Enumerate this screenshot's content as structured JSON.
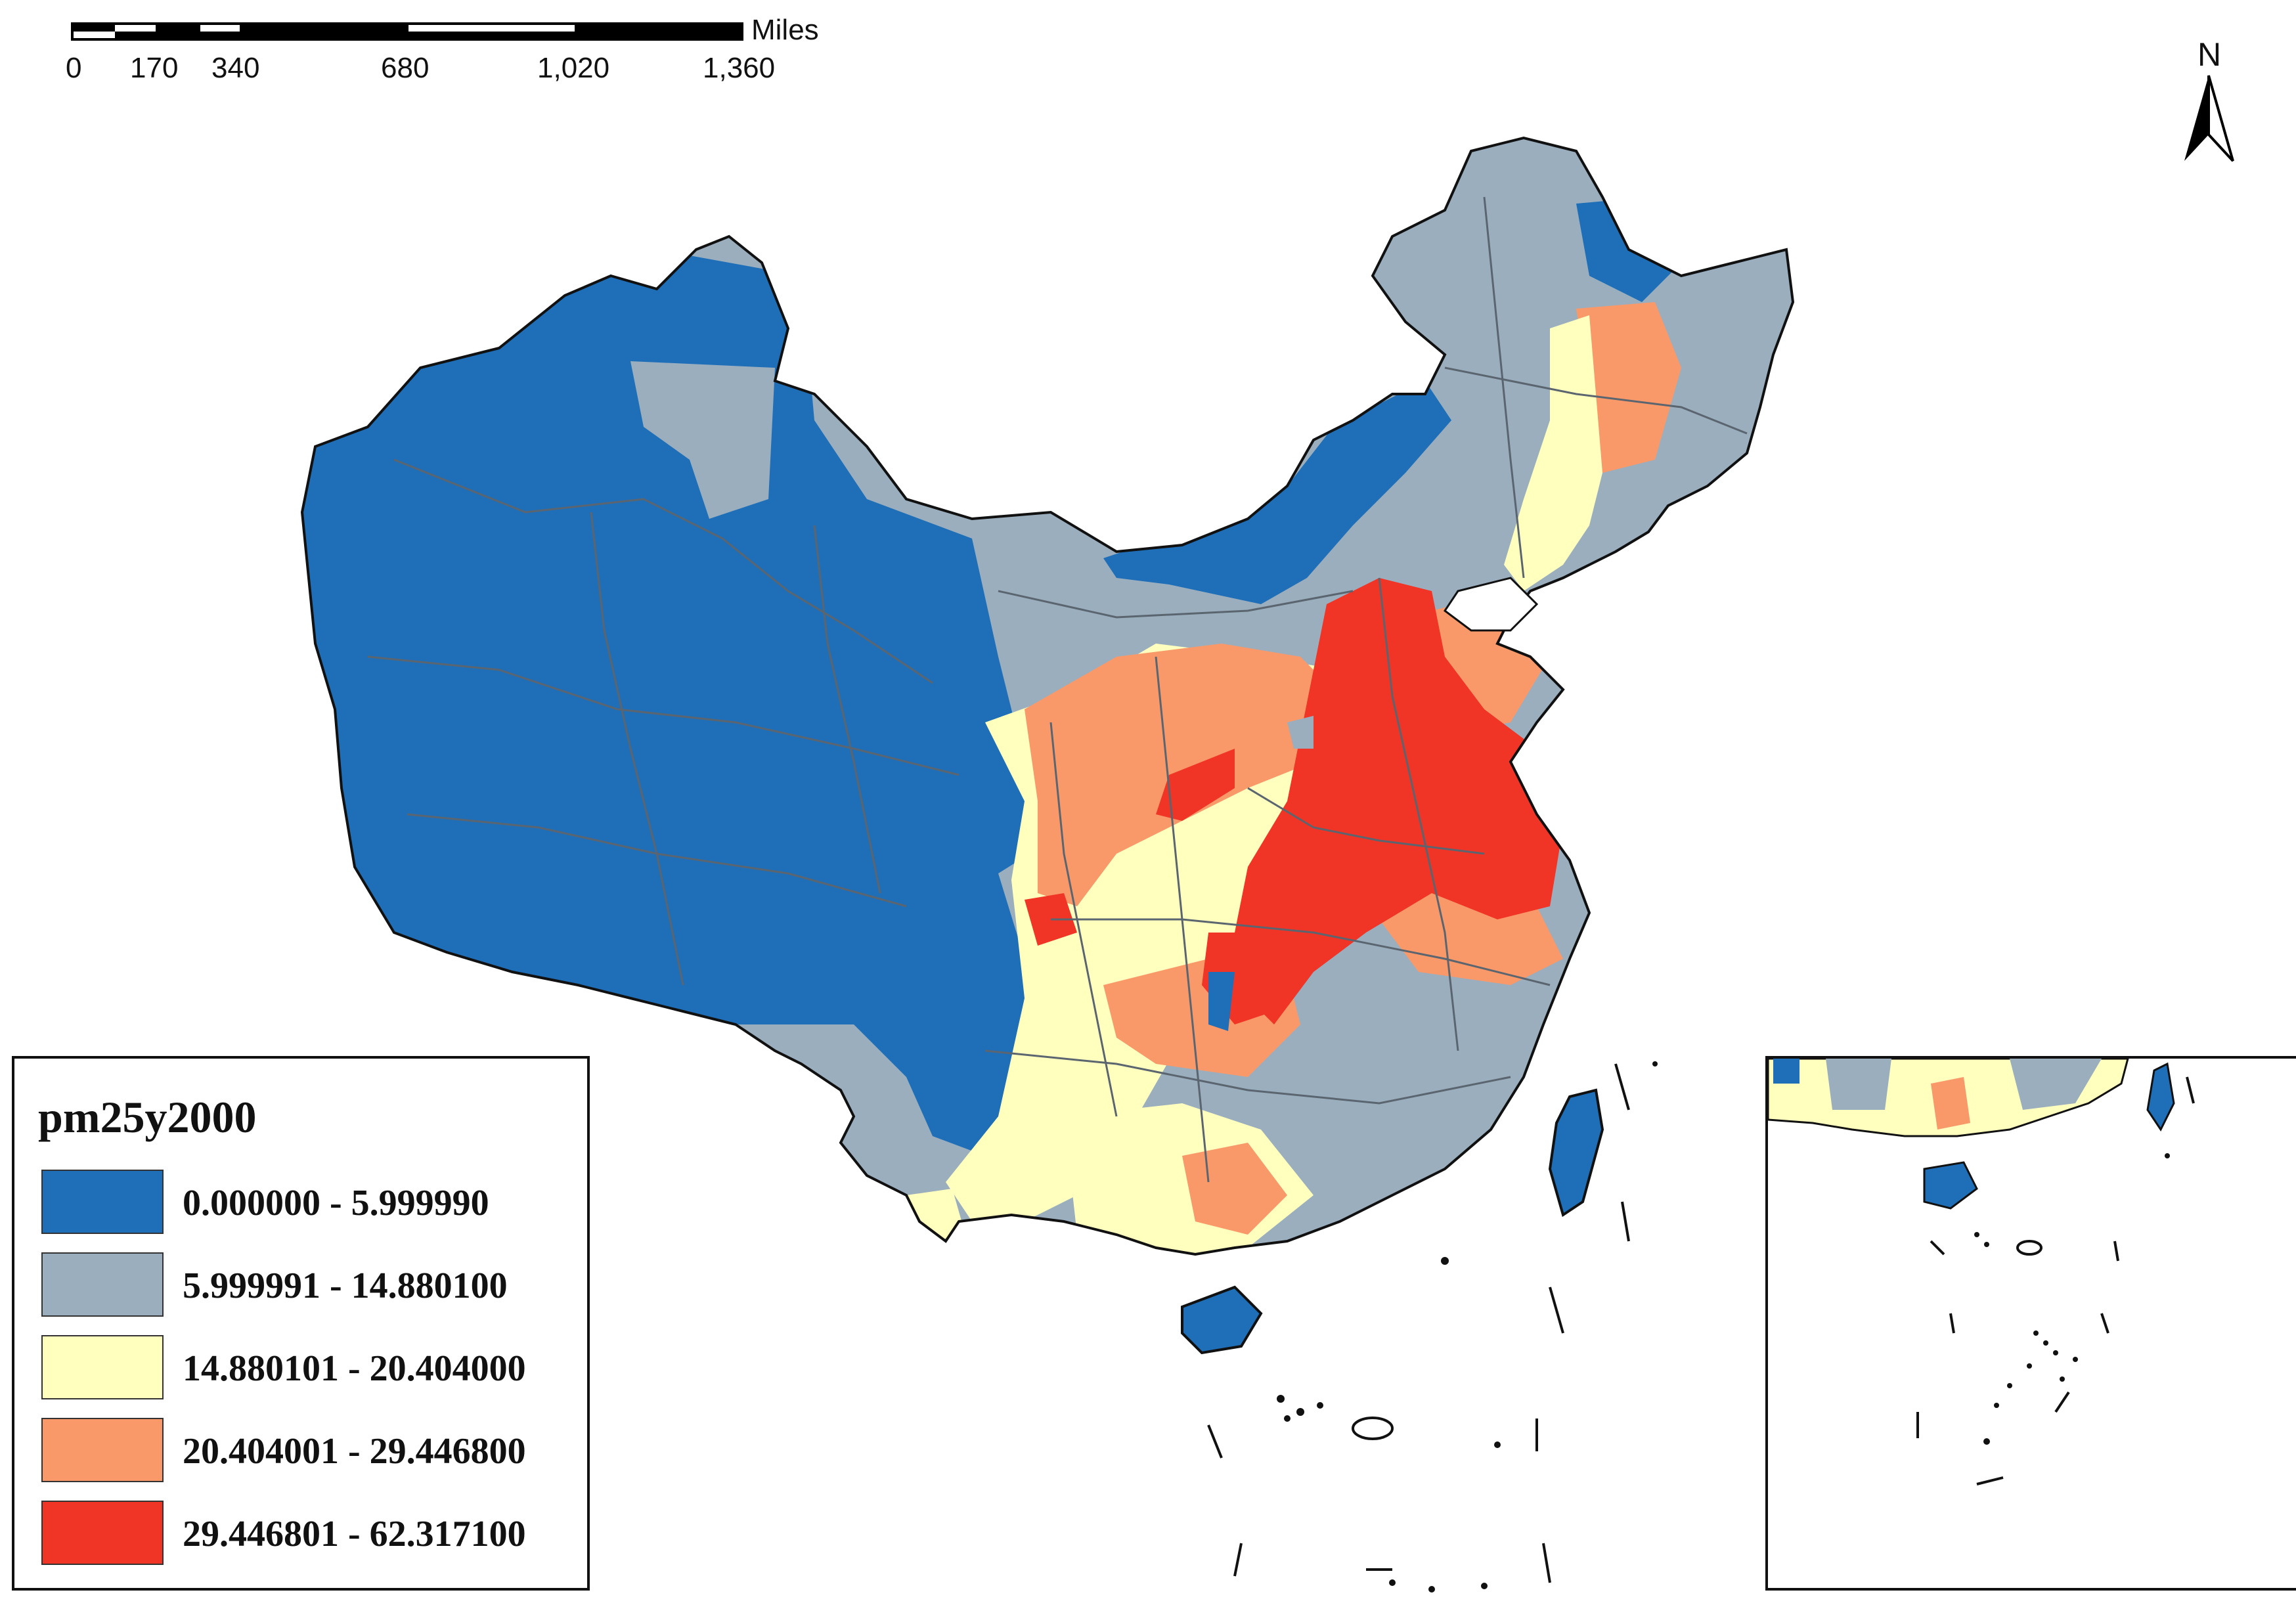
{
  "scale_bar": {
    "unit": "Miles",
    "ticks": [
      "0",
      "170",
      "340",
      "680",
      "1,020",
      "1,360"
    ]
  },
  "north_arrow": {
    "label": "N"
  },
  "legend": {
    "title": "pm25y2000",
    "classes": [
      {
        "label": "0.000000 - 5.999990",
        "color": "#1f6fb8"
      },
      {
        "label": "5.999991 - 14.880100",
        "color": "#9aaebe"
      },
      {
        "label": "14.880101 - 20.404000",
        "color": "#ffffbe"
      },
      {
        "label": "20.404001 - 29.446800",
        "color": "#f9996a"
      },
      {
        "label": "29.446801 - 62.317100",
        "color": "#f03426"
      }
    ]
  },
  "colors": {
    "boundary": "#5b6570",
    "outline": "#111111",
    "background": "#ffffff"
  }
}
